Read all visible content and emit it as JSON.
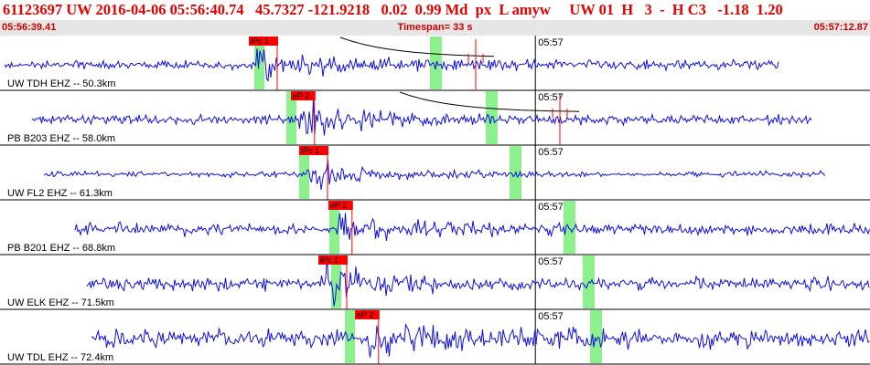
{
  "header": {
    "summary": "61123697 UW 2016-04-06 05:56:40.74   45.7327 -121.9218   0.02  0.99 Md  px  L amyw     UW 01  H   3  -  H C3   -1.18  1.20"
  },
  "timebar": {
    "start": "05:56:39.41",
    "span": "Timespan=  33 s",
    "end": "05:57:12.87"
  },
  "colors": {
    "header_text": "#e60000",
    "trace": "#1010dd",
    "pick_box": "#ff0000",
    "window_band": "#8cf08c",
    "grid": "#000000",
    "timebar_bg": "#e6e6e6"
  },
  "traces": [
    {
      "label": "UW TDH EHZ -- 50.3km",
      "pick": "iPc 1",
      "minute_tick": "05:57",
      "arrival_s": 9.5
    },
    {
      "label": "PB B203 EHZ -- 58.0km",
      "pick": "eP 2",
      "minute_tick": "05:57",
      "arrival_s": 11.0
    },
    {
      "label": "UW FL2 EHZ -- 61.3km",
      "pick": "iPc 1",
      "minute_tick": "05:57",
      "arrival_s": 11.3
    },
    {
      "label": "PB B201 EHZ -- 68.8km",
      "pick": "eP 2",
      "minute_tick": "05:57",
      "arrival_s": 12.6
    },
    {
      "label": "UW ELK EHZ -- 71.5km",
      "pick": "iPc 1",
      "minute_tick": "05:57",
      "arrival_s": 12.1
    },
    {
      "label": "UW TDL EHZ -- 72.4km",
      "pick": "eP 2",
      "minute_tick": "05:57",
      "arrival_s": 13.4
    }
  ]
}
